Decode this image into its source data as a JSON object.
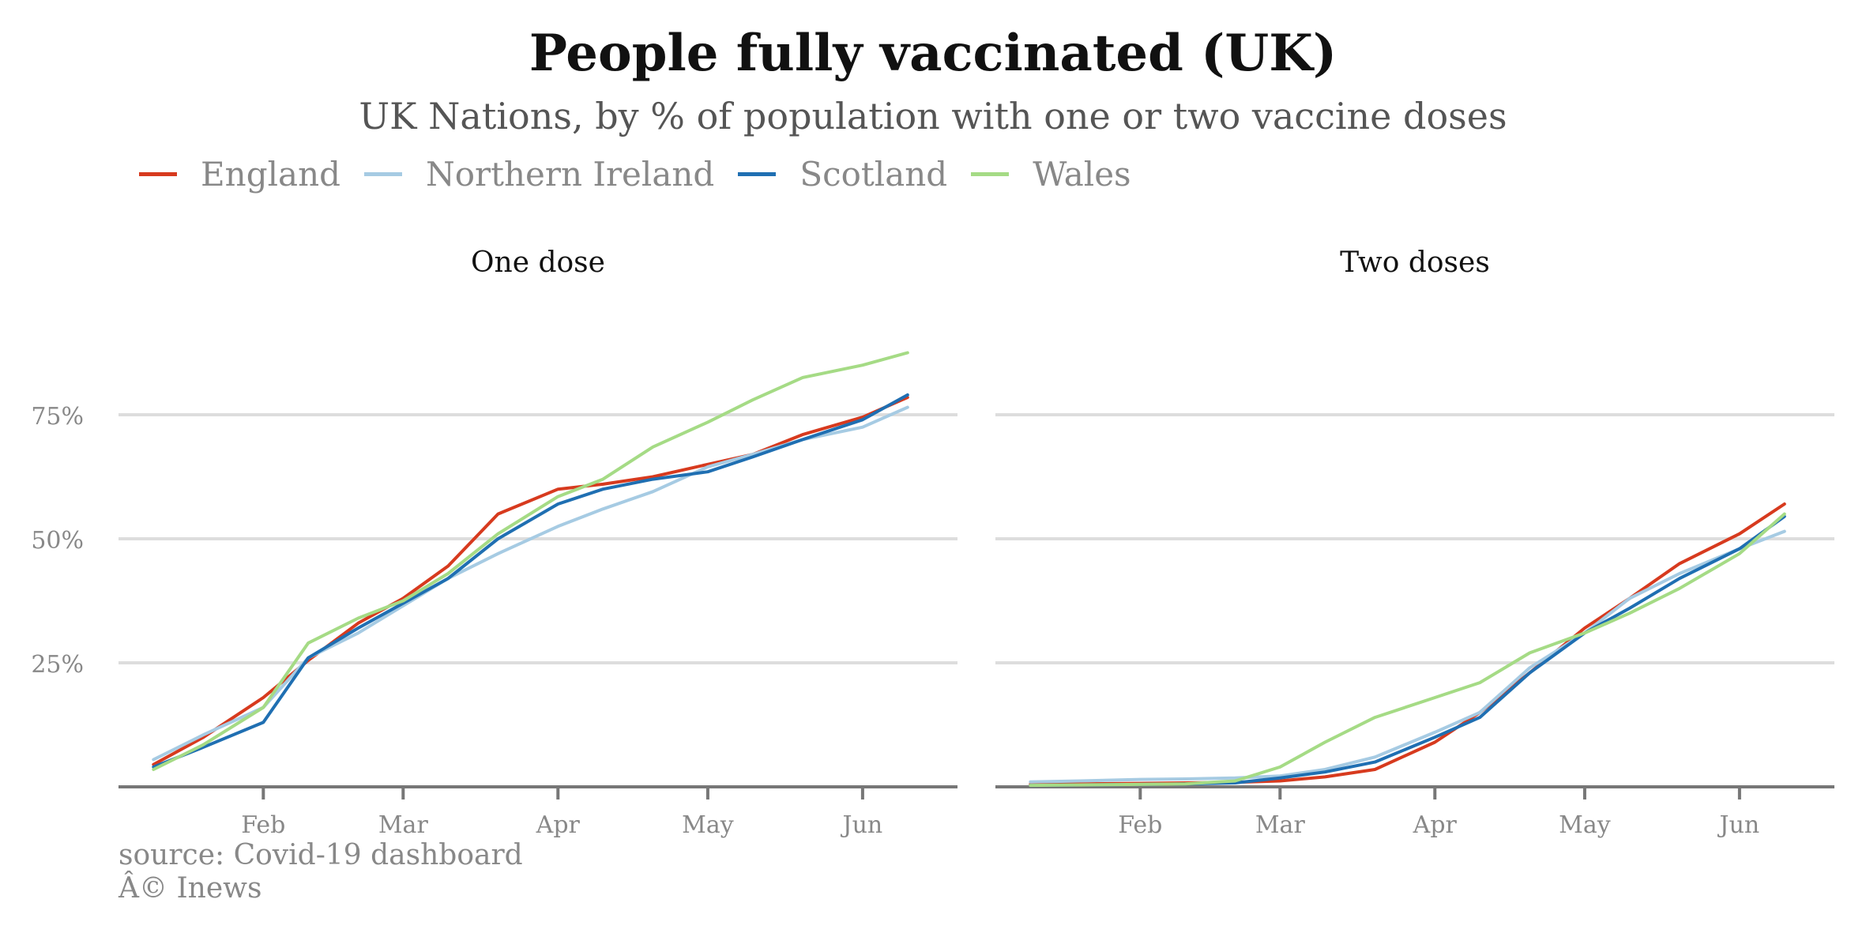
{
  "title": "People fully vaccinated (UK)",
  "subtitle": "UK Nations, by % of population with one or two vaccine doses",
  "source": "source: Covid-19 dashboard",
  "credit": "Â© Inews",
  "colors": {
    "England": "#d73a1e",
    "Northern Ireland": "#a6cbe3",
    "Scotland": "#1f6fb2",
    "Wales": "#a5db85"
  },
  "chart_data": [
    {
      "type": "line",
      "title": "One dose",
      "xlabel": "",
      "ylabel": "",
      "x_ticks": [
        "Feb",
        "Mar",
        "Apr",
        "May",
        "Jun"
      ],
      "x_tick_dates": [
        "2021-02-01",
        "2021-03-01",
        "2021-04-01",
        "2021-05-01",
        "2021-06-01"
      ],
      "xlim": [
        "2021-01-03",
        "2021-06-20"
      ],
      "y_ticks": [
        "25%",
        "50%",
        "75%"
      ],
      "y_tick_values": [
        25,
        50,
        75
      ],
      "ylim": [
        0,
        90
      ],
      "grid": "horizontal",
      "legend": "top-left",
      "x": [
        "2021-01-10",
        "2021-01-20",
        "2021-02-01",
        "2021-02-10",
        "2021-02-20",
        "2021-03-01",
        "2021-03-10",
        "2021-03-20",
        "2021-04-01",
        "2021-04-10",
        "2021-04-20",
        "2021-05-01",
        "2021-05-10",
        "2021-05-20",
        "2021-06-01",
        "2021-06-10"
      ],
      "series": [
        {
          "name": "England",
          "values": [
            4.5,
            10,
            18,
            25.5,
            33,
            38,
            44.5,
            55,
            60,
            61,
            62.5,
            65,
            67,
            71,
            74.5,
            78.5
          ]
        },
        {
          "name": "Northern Ireland",
          "values": [
            5.5,
            10.5,
            16,
            26,
            31,
            36.5,
            42,
            47,
            52.5,
            56,
            59.5,
            64.5,
            67,
            70,
            72.5,
            76.5
          ]
        },
        {
          "name": "Scotland",
          "values": [
            4,
            8,
            13,
            26,
            32,
            37,
            42,
            50,
            57,
            60,
            62,
            63.5,
            66.5,
            70,
            74,
            79
          ]
        },
        {
          "name": "Wales",
          "values": [
            3.5,
            8.5,
            16,
            29,
            34,
            37.5,
            43,
            51,
            58.5,
            62,
            68.5,
            73.5,
            78,
            82.5,
            85,
            87.5
          ]
        }
      ]
    },
    {
      "type": "line",
      "title": "Two doses",
      "xlabel": "",
      "ylabel": "",
      "x_ticks": [
        "Feb",
        "Mar",
        "Apr",
        "May",
        "Jun"
      ],
      "x_tick_dates": [
        "2021-02-01",
        "2021-03-01",
        "2021-04-01",
        "2021-05-01",
        "2021-06-01"
      ],
      "xlim": [
        "2021-01-03",
        "2021-06-20"
      ],
      "ylim": [
        0,
        90
      ],
      "grid": "horizontal",
      "x": [
        "2021-01-10",
        "2021-01-20",
        "2021-02-01",
        "2021-02-10",
        "2021-02-20",
        "2021-03-01",
        "2021-03-10",
        "2021-03-20",
        "2021-04-01",
        "2021-04-10",
        "2021-04-20",
        "2021-05-01",
        "2021-05-10",
        "2021-05-20",
        "2021-06-01",
        "2021-06-10"
      ],
      "series": [
        {
          "name": "England",
          "values": [
            0.5,
            0.6,
            0.7,
            0.8,
            0.9,
            1.2,
            2,
            3.5,
            9,
            15,
            23,
            32,
            38,
            45,
            51,
            57
          ]
        },
        {
          "name": "Northern Ireland",
          "values": [
            1,
            1.2,
            1.5,
            1.6,
            1.8,
            2.2,
            3.5,
            6,
            11,
            15,
            24,
            31,
            38,
            43,
            48,
            51.5
          ]
        },
        {
          "name": "Scotland",
          "values": [
            0.3,
            0.4,
            0.5,
            0.6,
            0.8,
            1.8,
            3,
            5,
            10,
            14,
            23,
            31,
            36,
            42,
            48,
            54.5
          ]
        },
        {
          "name": "Wales",
          "values": [
            0.3,
            0.4,
            0.5,
            0.6,
            1.2,
            4,
            9,
            14,
            18,
            21,
            27,
            31,
            35,
            40,
            47,
            55
          ]
        }
      ]
    }
  ]
}
